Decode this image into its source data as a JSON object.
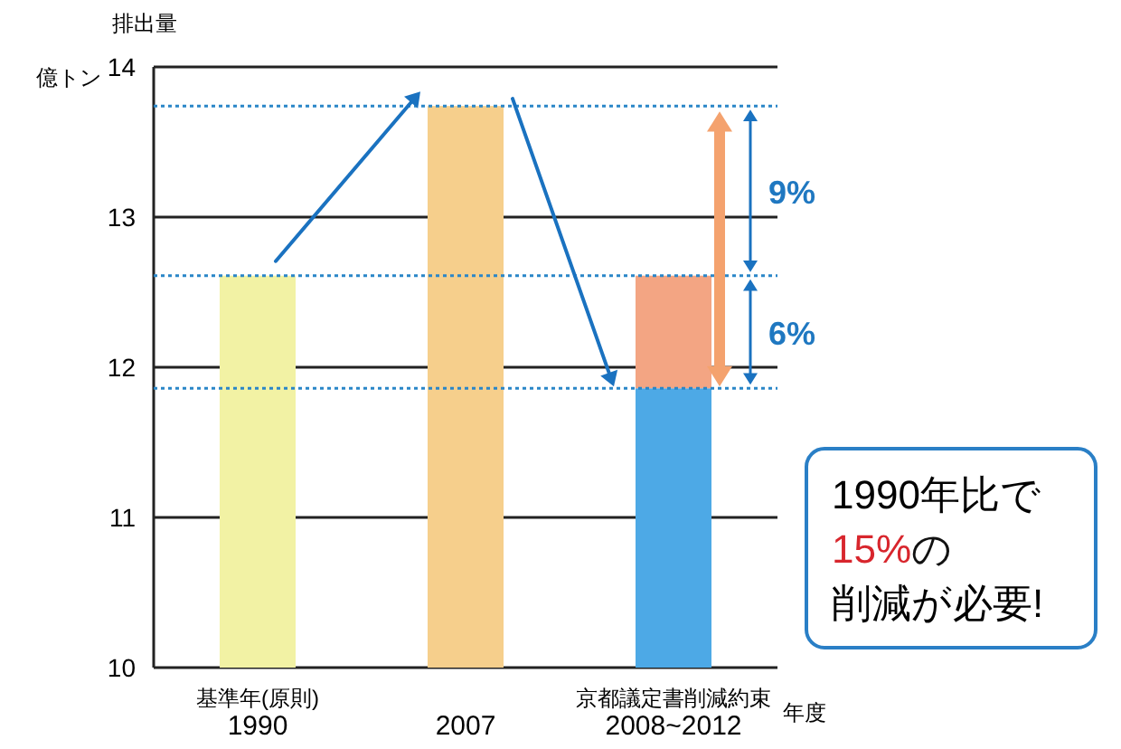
{
  "chart_data": {
    "type": "bar",
    "categories": [
      "基準年(原則)\n1990",
      "2007",
      "京都議定書削減約束\n2008~2012"
    ],
    "series": [
      {
        "colors": [
          "#f2f2a4",
          "#f6cf8c",
          "#4da9e6"
        ],
        "values": [
          12.61,
          13.74,
          11.86
        ]
      },
      {
        "color": "#f3a583",
        "base": [
          null,
          null,
          11.86
        ],
        "values": [
          null,
          null,
          0.75
        ]
      }
    ],
    "ylim": [
      10,
      14
    ],
    "yticks": [
      10,
      11,
      12,
      13,
      14
    ],
    "grid": "y",
    "ylabel": "排出量",
    "xlabel": "年度",
    "ref_lines": [
      {
        "axis": "y",
        "value": 13.74,
        "color": "#2a86c8",
        "line_style": "dotted"
      },
      {
        "axis": "y",
        "value": 12.61,
        "color": "#2a86c8",
        "line_style": "dotted"
      },
      {
        "axis": "y",
        "value": 11.86,
        "color": "#2a86c8",
        "line_style": "dotted"
      }
    ],
    "annotations": [
      "億トン",
      "9%",
      "6%",
      "1990年比で",
      "15%",
      "の",
      "削減が必要!"
    ]
  }
}
